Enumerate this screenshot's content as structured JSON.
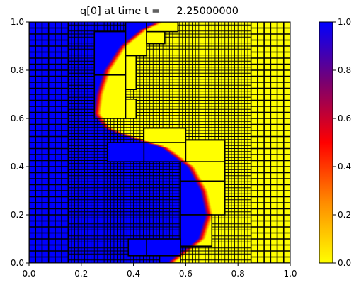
{
  "chart_data": {
    "type": "heatmap",
    "title": "q[0] at time t =     2.25000000",
    "xlim": [
      0,
      1
    ],
    "ylim": [
      0,
      1
    ],
    "x_ticks": [
      "0.0",
      "0.2",
      "0.4",
      "0.6",
      "0.8",
      "1.0"
    ],
    "y_ticks": [
      "0.0",
      "0.2",
      "0.4",
      "0.6",
      "0.8",
      "1.0"
    ],
    "colorbar": {
      "range": [
        0,
        1
      ],
      "ticks": [
        "0.0",
        "0.2",
        "0.4",
        "0.6",
        "0.8",
        "1.0"
      ],
      "colormap": [
        "#ffff00",
        "#ff8c00",
        "#ff0000",
        "#7a0070",
        "#0000ff"
      ]
    },
    "field": {
      "description_value_high": 1.0,
      "description_value_low": 0.0,
      "interface_x_at_y": [
        [
          0.0,
          0.54
        ],
        [
          0.05,
          0.6
        ],
        [
          0.1,
          0.66
        ],
        [
          0.2,
          0.69
        ],
        [
          0.3,
          0.67
        ],
        [
          0.4,
          0.62
        ],
        [
          0.48,
          0.52
        ],
        [
          0.52,
          0.4
        ],
        [
          0.56,
          0.3
        ],
        [
          0.62,
          0.26
        ],
        [
          0.7,
          0.27
        ],
        [
          0.8,
          0.3
        ],
        [
          0.9,
          0.36
        ],
        [
          0.97,
          0.44
        ],
        [
          1.0,
          0.5
        ]
      ],
      "interface_width": 0.03
    },
    "amr_grid": {
      "coarse_bands": [
        {
          "x0": 0.0,
          "x1": 0.15,
          "cells": 10,
          "cell_size": 0.025
        },
        {
          "x0": 0.85,
          "x1": 1.0,
          "cells": 10,
          "cell_size": 0.025
        }
      ],
      "fine_band": {
        "x0": 0.15,
        "x1": 0.85,
        "cell_size": 0.0125
      },
      "patches": [
        [
          0.25,
          0.78,
          0.37,
          0.96
        ],
        [
          0.25,
          0.6,
          0.37,
          0.78
        ],
        [
          0.37,
          0.86,
          0.45,
          1.0
        ],
        [
          0.45,
          0.91,
          0.52,
          0.96
        ],
        [
          0.45,
          0.96,
          0.57,
          1.0
        ],
        [
          0.37,
          0.72,
          0.41,
          0.86
        ],
        [
          0.37,
          0.6,
          0.41,
          0.68
        ],
        [
          0.3,
          0.42,
          0.44,
          0.5
        ],
        [
          0.44,
          0.42,
          0.6,
          0.5
        ],
        [
          0.44,
          0.5,
          0.6,
          0.56
        ],
        [
          0.6,
          0.42,
          0.75,
          0.51
        ],
        [
          0.58,
          0.34,
          0.75,
          0.42
        ],
        [
          0.58,
          0.2,
          0.75,
          0.34
        ],
        [
          0.58,
          0.07,
          0.7,
          0.2
        ],
        [
          0.45,
          0.03,
          0.58,
          0.1
        ],
        [
          0.38,
          0.03,
          0.45,
          0.1
        ],
        [
          0.5,
          0.0,
          0.58,
          0.03
        ]
      ]
    }
  }
}
